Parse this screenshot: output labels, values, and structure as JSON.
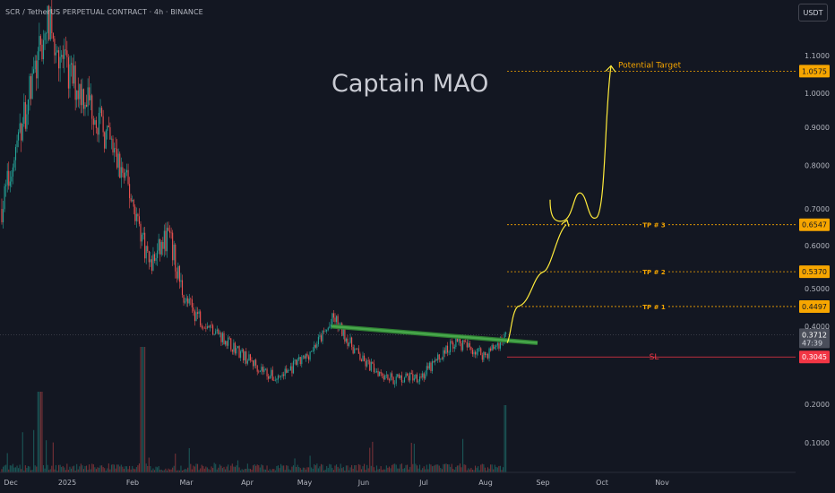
{
  "header": {
    "title": "SCR / TetherUS PERPETUAL CONTRACT · 4h · BINANCE",
    "currency_button": "USDT"
  },
  "watermark": "Captain MAO",
  "colors": {
    "background": "#131722",
    "up": "#26a69a",
    "down": "#ef5350",
    "level_line": "#f7a600",
    "sl_line": "#f23645",
    "trendline": "#4caf50",
    "projection": "#ffeb3b",
    "axis_text": "#b2b5be"
  },
  "chart_data": {
    "type": "candlestick",
    "symbol": "SCR / TetherUS PERPETUAL CONTRACT",
    "interval": "4h",
    "exchange": "BINANCE",
    "x_ticks": [
      "Dec",
      "2025",
      "Feb",
      "Mar",
      "Apr",
      "May",
      "Jun",
      "Jul",
      "Aug",
      "Sep",
      "Oct",
      "Nov"
    ],
    "y_ticks": [
      "1.1000",
      "1.0000",
      "0.9000",
      "0.8000",
      "0.7000",
      "0.6000",
      "0.5000",
      "0.4000",
      "0.2000",
      "0.1000"
    ],
    "y_scale": "log",
    "price_path": [
      {
        "date": "Dec",
        "price": 0.7
      },
      {
        "date": "Dec",
        "price": 1.0
      },
      {
        "date": "Dec",
        "price": 1.2
      },
      {
        "date": "2025",
        "price": 1.05
      },
      {
        "date": "2025",
        "price": 0.98
      },
      {
        "date": "2025",
        "price": 0.85
      },
      {
        "date": "Feb",
        "price": 0.72
      },
      {
        "date": "Feb",
        "price": 0.55
      },
      {
        "date": "Feb",
        "price": 0.63
      },
      {
        "date": "Mar",
        "price": 0.46
      },
      {
        "date": "Mar",
        "price": 0.38
      },
      {
        "date": "Apr",
        "price": 0.3
      },
      {
        "date": "Apr",
        "price": 0.25
      },
      {
        "date": "May",
        "price": 0.3
      },
      {
        "date": "May",
        "price": 0.42
      },
      {
        "date": "Jun",
        "price": 0.29
      },
      {
        "date": "Jun",
        "price": 0.25
      },
      {
        "date": "Jul",
        "price": 0.26
      },
      {
        "date": "Jul",
        "price": 0.35
      },
      {
        "date": "Aug",
        "price": 0.31
      },
      {
        "date": "Aug",
        "price": 0.3712
      }
    ],
    "levels": [
      {
        "label": "Potential Target",
        "value": 1.0575,
        "price_label": "1.0575"
      },
      {
        "label": "TP # 3",
        "value": 0.6547,
        "price_label": "0.6547"
      },
      {
        "label": "TP # 2",
        "value": 0.537,
        "price_label": "0.5370"
      },
      {
        "label": "TP # 1",
        "value": 0.4497,
        "price_label": "0.4497"
      },
      {
        "label": "SL",
        "value": 0.3045,
        "price_label": "0.3045"
      }
    ],
    "current_price": {
      "value": 0.3712,
      "price_label": "0.3712",
      "countdown": "47:39"
    },
    "trendline": {
      "from": {
        "date": "May",
        "price": 0.4
      },
      "to": {
        "date": "Aug",
        "price": 0.345
      }
    },
    "projection_path": [
      0.345,
      0.45,
      0.537,
      0.6547,
      0.7,
      0.66,
      0.71,
      0.66,
      1.0575
    ],
    "volume": "shown",
    "grid": false
  }
}
